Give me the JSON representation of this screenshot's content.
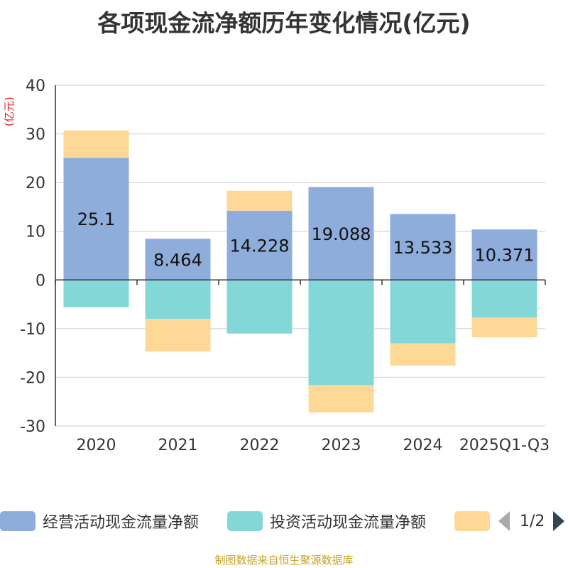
{
  "chart_data": {
    "type": "bar",
    "stacked": true,
    "title": "各项现金流净额历年变化情况(亿元)",
    "y_unit_label": "(亿元)",
    "categories": [
      "2020",
      "2021",
      "2022",
      "2023",
      "2024",
      "2025Q1-Q3"
    ],
    "ylim": [
      -30,
      40
    ],
    "yticks": [
      40,
      30,
      20,
      10,
      0,
      -10,
      -20,
      -30
    ],
    "grid": true,
    "series": [
      {
        "name": "经营活动现金流量净额",
        "color": "#8eaddb",
        "values": [
          25.1,
          8.464,
          14.228,
          19.088,
          13.533,
          10.371
        ],
        "labels": [
          "25.1",
          "8.464",
          "14.228",
          "19.088",
          "13.533",
          "10.371"
        ]
      },
      {
        "name": "投资活动现金流量净额",
        "color": "#84d7d7",
        "values": [
          -5.6,
          -8.0,
          -11.0,
          -21.6,
          -13.0,
          -7.7
        ]
      },
      {
        "name": "",
        "color": "#fdd896",
        "values": [
          5.6,
          -6.7,
          4.1,
          -5.6,
          -4.6,
          -4.1
        ]
      }
    ],
    "legend_page": "1/2",
    "source": "制图数据来自恒生聚源数据库"
  }
}
